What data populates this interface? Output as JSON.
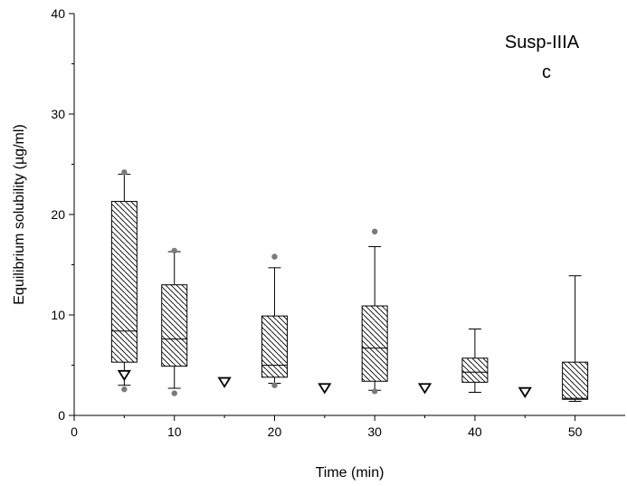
{
  "chart_data": {
    "type": "box",
    "title": "",
    "xlabel": "Time (min)",
    "ylabel": "Equilibrium solubility (µg/ml)",
    "xlim": [
      0,
      55
    ],
    "ylim": [
      0,
      40
    ],
    "xticks": [
      0,
      10,
      20,
      30,
      40,
      50
    ],
    "yticks": [
      0,
      10,
      20,
      30,
      40
    ],
    "grid": false,
    "annotations": [
      "Susp-IIIA",
      "c"
    ],
    "boxes": [
      {
        "x": 5,
        "whisker_low": 3.0,
        "q1": 5.3,
        "median": 8.4,
        "q3": 21.3,
        "whisker_high": 24.0,
        "outliers": [
          2.6,
          24.2
        ]
      },
      {
        "x": 10,
        "whisker_low": 2.7,
        "q1": 4.9,
        "median": 7.6,
        "q3": 13.0,
        "whisker_high": 16.3,
        "outliers": [
          2.2,
          16.4
        ]
      },
      {
        "x": 20,
        "whisker_low": 3.2,
        "q1": 3.8,
        "median": 5.0,
        "q3": 9.9,
        "whisker_high": 14.7,
        "outliers": [
          3.0,
          15.8
        ]
      },
      {
        "x": 30,
        "whisker_low": 2.5,
        "q1": 3.4,
        "median": 6.7,
        "q3": 10.9,
        "whisker_high": 16.8,
        "outliers": [
          2.4,
          18.3
        ]
      },
      {
        "x": 40,
        "whisker_low": 2.3,
        "q1": 3.3,
        "median": 4.3,
        "q3": 5.7,
        "whisker_high": 8.6,
        "outliers": []
      },
      {
        "x": 50,
        "whisker_low": 1.4,
        "q1": 1.6,
        "median": 1.7,
        "q3": 5.3,
        "whisker_high": 13.9,
        "outliers": []
      }
    ],
    "triangles": [
      {
        "x": 5,
        "y": 4.0
      },
      {
        "x": 15,
        "y": 3.3
      },
      {
        "x": 25,
        "y": 2.7
      },
      {
        "x": 35,
        "y": 2.7
      },
      {
        "x": 45,
        "y": 2.3
      }
    ]
  }
}
